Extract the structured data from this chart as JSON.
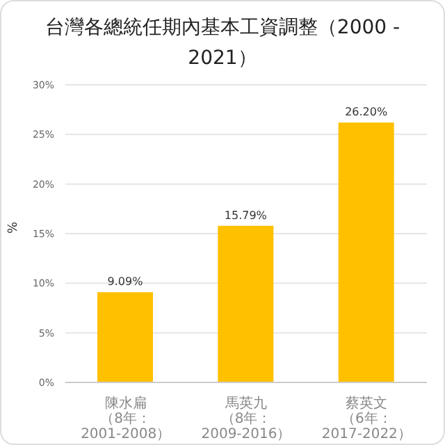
{
  "chart_data": {
    "type": "bar",
    "title": "台灣各總統任期內基本工資調整（2000 - 2021）",
    "ylabel": "%",
    "categories": [
      "陳水扁（8年：2001-2008）",
      "馬英九（8年：2009-2016）",
      "蔡英文（6年：2017-2022）"
    ],
    "values": [
      9.09,
      15.79,
      26.2
    ],
    "value_labels": [
      "9.09%",
      "15.79%",
      "26.20%"
    ],
    "color": "#ffc000",
    "ylim": [
      0,
      30
    ],
    "yticks": [
      {
        "value": 0,
        "label": "0%"
      },
      {
        "value": 5,
        "label": "5%"
      },
      {
        "value": 10,
        "label": "10%"
      },
      {
        "value": 15,
        "label": "15%"
      },
      {
        "value": 20,
        "label": "20%"
      },
      {
        "value": 25,
        "label": "25%"
      },
      {
        "value": 30,
        "label": "30%"
      }
    ],
    "grid": "y",
    "legend": false
  }
}
